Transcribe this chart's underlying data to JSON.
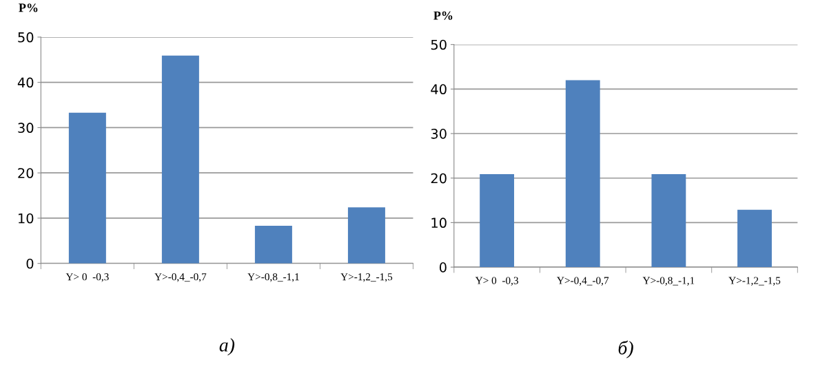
{
  "chart_data": [
    {
      "type": "bar",
      "ylabel": "P%",
      "categories": [
        "Y> 0  -0,3",
        "Y>-0,4_-0,7",
        "Y>-0,8_-1,1",
        "Y>-1,2_-1,5"
      ],
      "series": [
        {
          "color": "#4f81bd",
          "values": [
            33.3,
            45.9,
            8.3,
            12.4
          ]
        }
      ],
      "ylim": [
        0,
        50
      ],
      "yticks": [
        0,
        10,
        20,
        30,
        40,
        50
      ],
      "grid": "y",
      "annotations": [
        "а)"
      ]
    },
    {
      "type": "bar",
      "ylabel": "P%",
      "categories": [
        "Y> 0  -0,3",
        "Y>-0,4_-0,7",
        "Y>-0,8_-1,1",
        "Y>-1,2_-1,5"
      ],
      "series": [
        {
          "color": "#4f81bd",
          "values": [
            20.9,
            42.0,
            20.9,
            12.9
          ]
        }
      ],
      "ylim": [
        0,
        50
      ],
      "yticks": [
        0,
        10,
        20,
        30,
        40,
        50
      ],
      "grid": "y",
      "annotations": [
        "б)"
      ]
    }
  ]
}
